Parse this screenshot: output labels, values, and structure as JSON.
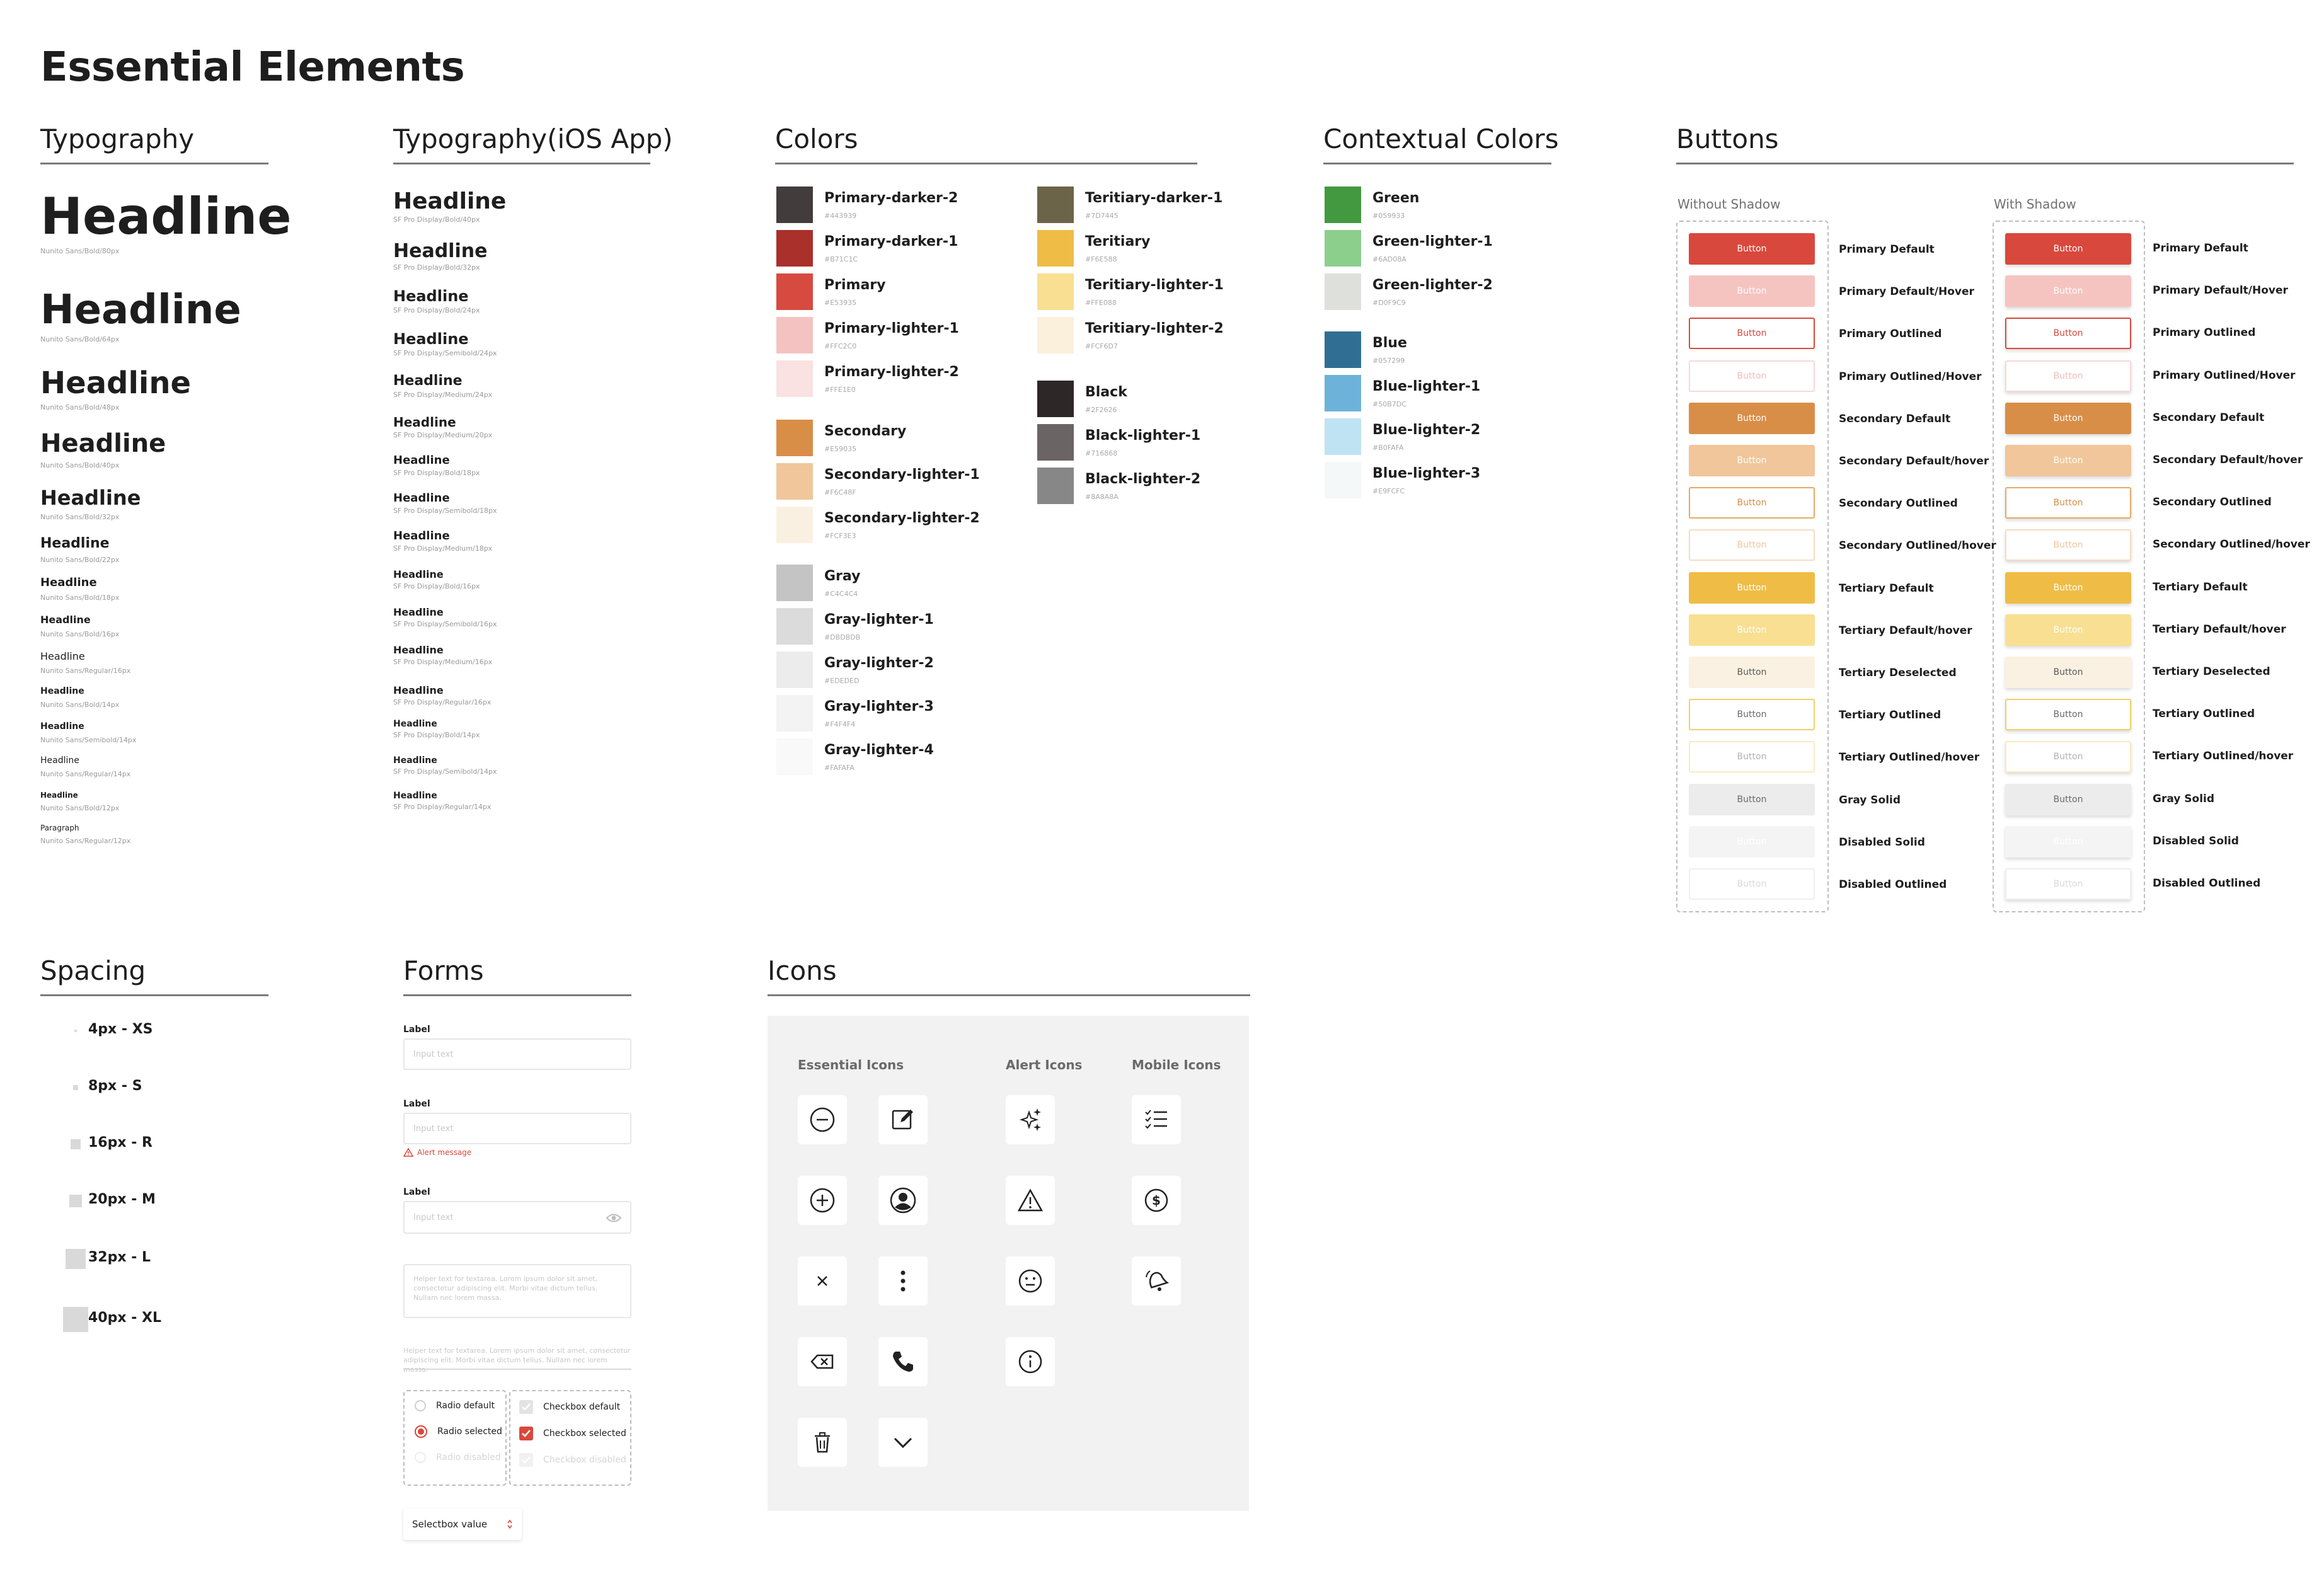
{
  "title": "Essential Elements",
  "sections": {
    "typography": "Typography",
    "typography_ios": "Typography(iOS App)",
    "colors": "Colors",
    "contextual": "Contextual Colors",
    "buttons": "Buttons",
    "spacing": "Spacing",
    "forms": "Forms",
    "icons": "Icons"
  },
  "typography": [
    {
      "text": "Headline",
      "spec": "Nunito Sans/Bold/80px"
    },
    {
      "text": "Headline",
      "spec": "Nunito Sans/Bold/64px"
    },
    {
      "text": "Headline",
      "spec": "Nunito Sans/Bold/48px"
    },
    {
      "text": "Headline",
      "spec": "Nunito Sans/Bold/40px"
    },
    {
      "text": "Headline",
      "spec": "Nunito Sans/Bold/32px"
    },
    {
      "text": "Headline",
      "spec": "Nunito Sans/Bold/22px"
    },
    {
      "text": "Headline",
      "spec": "Nunito Sans/Bold/18px"
    },
    {
      "text": "Headline",
      "spec": "Nunito Sans/Bold/16px"
    },
    {
      "text": "Headline",
      "spec": "Nunito Sans/Regular/16px"
    },
    {
      "text": "Headline",
      "spec": "Nunito Sans/Bold/14px"
    },
    {
      "text": "Headline",
      "spec": "Nunito Sans/Semibold/14px"
    },
    {
      "text": "Headline",
      "spec": "Nunito Sans/Regular/14px"
    },
    {
      "text": "Headline",
      "spec": "Nunito Sans/Bold/12px"
    },
    {
      "text": "Paragraph",
      "spec": "Nunito Sans/Regular/12px"
    }
  ],
  "typography_ios": [
    {
      "text": "Headline",
      "spec": "SF Pro Display/Bold/40px"
    },
    {
      "text": "Headline",
      "spec": "SF Pro Display/Bold/32px"
    },
    {
      "text": "Headline",
      "spec": "SF Pro Display/Bold/24px"
    },
    {
      "text": "Headline",
      "spec": "SF Pro Display/Semibold/24px"
    },
    {
      "text": "Headline",
      "spec": "SF Pro Display/Medium/24px"
    },
    {
      "text": "Headline",
      "spec": "SF Pro Display/Medium/20px"
    },
    {
      "text": "Headline",
      "spec": "SF Pro Display/Bold/18px"
    },
    {
      "text": "Headline",
      "spec": "SF Pro Display/Semibold/18px"
    },
    {
      "text": "Headline",
      "spec": "SF Pro Display/Medium/18px"
    },
    {
      "text": "Headline",
      "spec": "SF Pro Display/Bold/16px"
    },
    {
      "text": "Headline",
      "spec": "SF Pro Display/Semibold/16px"
    },
    {
      "text": "Headline",
      "spec": "SF Pro Display/Medium/16px"
    },
    {
      "text": "Headline",
      "spec": "SF Pro Display/Regular/16px"
    },
    {
      "text": "Headline",
      "spec": "SF Pro Display/Bold/14px"
    },
    {
      "text": "Headline",
      "spec": "SF Pro Display/Semibold/14px"
    },
    {
      "text": "Headline",
      "spec": "SF Pro Display/Regular/14px"
    }
  ],
  "colors_col1": [
    {
      "name": "Primary-darker-2",
      "hex": "#443939"
    },
    {
      "name": "Primary-darker-1",
      "hex": "#B71C1C"
    },
    {
      "name": "Primary",
      "hex": "#E53935"
    },
    {
      "name": "Primary-lighter-1",
      "hex": "#FFC2C0"
    },
    {
      "name": "Primary-lighter-2",
      "hex": "#FFE1E0"
    },
    {
      "name": "Secondary",
      "hex": "#E59035"
    },
    {
      "name": "Secondary-lighter-1",
      "hex": "#F6C48F"
    },
    {
      "name": "Secondary-lighter-2",
      "hex": "#FCF3E3"
    },
    {
      "name": "Gray",
      "hex": "#C4C4C4"
    },
    {
      "name": "Gray-lighter-1",
      "hex": "#DBDBDB"
    },
    {
      "name": "Gray-lighter-2",
      "hex": "#EDEDED"
    },
    {
      "name": "Gray-lighter-3",
      "hex": "#F4F4F4"
    },
    {
      "name": "Gray-lighter-4",
      "hex": "#FAFAFA"
    }
  ],
  "colors_col2": [
    {
      "name": "Teritiary-darker-1",
      "hex": "#7D7445"
    },
    {
      "name": "Teritiary",
      "hex": "#F6E588"
    },
    {
      "name": "Teritiary-lighter-1",
      "hex": "#FFE088"
    },
    {
      "name": "Teritiary-lighter-2",
      "hex": "#FCF6D7"
    },
    {
      "name": "Black",
      "hex": "#2F2626"
    },
    {
      "name": "Black-lighter-1",
      "hex": "#716868"
    },
    {
      "name": "Black-lighter-2",
      "hex": "#8A8A8A"
    }
  ],
  "contextual": [
    {
      "name": "Green",
      "hex": "#059933"
    },
    {
      "name": "Green-lighter-1",
      "hex": "#6AD08A"
    },
    {
      "name": "Green-lighter-2",
      "hex": "#D0F9C9"
    },
    {
      "name": "Blue",
      "hex": "#057299"
    },
    {
      "name": "Blue-lighter-1",
      "hex": "#50B7DC"
    },
    {
      "name": "Blue-lighter-2",
      "hex": "#B0FAFA"
    },
    {
      "name": "Blue-lighter-3",
      "hex": "#E9FCFC"
    }
  ],
  "swatch_fill": [
    "#433c3c",
    "#a9302b",
    "#d74a40",
    "#f4c3c1",
    "#f9e2e1",
    "#d98e47",
    "#f0c69a",
    "#faf0e2",
    "#c4c4c4",
    "#dbdbdb",
    "#ececec",
    "#f3f3f3",
    "#f9f9f9"
  ],
  "swatch_fill2": [
    "#6b6449",
    "#efbd45",
    "#f8df92",
    "#faf0dc",
    "#2d2727",
    "#6a6564",
    "#878787"
  ],
  "swatch_fill3": [
    "#43993f",
    "#8ccf8d",
    "#dee0dc",
    "#306f93",
    "#6db3d9",
    "#bfe3f2",
    "#f5f8f8"
  ],
  "buttons": {
    "without_shadow": "Without Shadow",
    "with_shadow": "With Shadow",
    "button_text": "Button",
    "rows": [
      {
        "label": "Primary Default",
        "label2": "Primary Default"
      },
      {
        "label": "Primary Default/Hover",
        "label2": "Primary Default/Hover"
      },
      {
        "label": "Primary Outlined",
        "label2": "Primary Outlined"
      },
      {
        "label": "Primary Outlined/Hover",
        "label2": "Primary Outlined/Hover"
      },
      {
        "label": "Secondary Default",
        "label2": "Secondary Default"
      },
      {
        "label": "Secondary Default/hover",
        "label2": "Secondary Default/hover"
      },
      {
        "label": "Secondary Outlined",
        "label2": "Secondary Outlined"
      },
      {
        "label": "Secondary Outlined/hover",
        "label2": "Secondary Outlined/hover"
      },
      {
        "label": "Tertiary Default",
        "label2": "Tertiary Default"
      },
      {
        "label": "Tertiary Default/hover",
        "label2": "Tertiary Default/hover"
      },
      {
        "label": "Tertiary Deselected",
        "label2": "Tertiary Deselected"
      },
      {
        "label": "Tertiary Outlined",
        "label2": "Tertiary Outlined"
      },
      {
        "label": "Tertiary Outlined/hover",
        "label2": "Tertiary Outlined/hover"
      },
      {
        "label": "Gray Solid",
        "label2": "Gray Solid"
      },
      {
        "label": "Disabled Solid",
        "label2": "Disabled Solid"
      },
      {
        "label": "Disabled Outlined",
        "label2": "Disabled Outlined"
      }
    ]
  },
  "spacing": [
    "4px - XS",
    "8px - S",
    "16px - R",
    "20px - M",
    "32px - L",
    "40px - XL"
  ],
  "forms": {
    "label": "Label",
    "placeholder": "Input text",
    "alert": "Alert message",
    "helper": "Helper text for textarea. Lorem ipsum dolor sit amet, consectetur adipiscing elit. Morbi vitae dictum tellus. Nullam nec lorem massa.",
    "radio_default": "Radio default",
    "radio_selected": "Radio selected",
    "radio_disabled": "Radio disabled",
    "checkbox_default": "Checkbox default",
    "checkbox_selected": "Checkbox selected",
    "checkbox_disabled": "Checkbox disabled",
    "select_value": "Selectbox value"
  },
  "icons": {
    "essential": "Essential Icons",
    "alert": "Alert Icons",
    "mobile": "Mobile Icons"
  }
}
